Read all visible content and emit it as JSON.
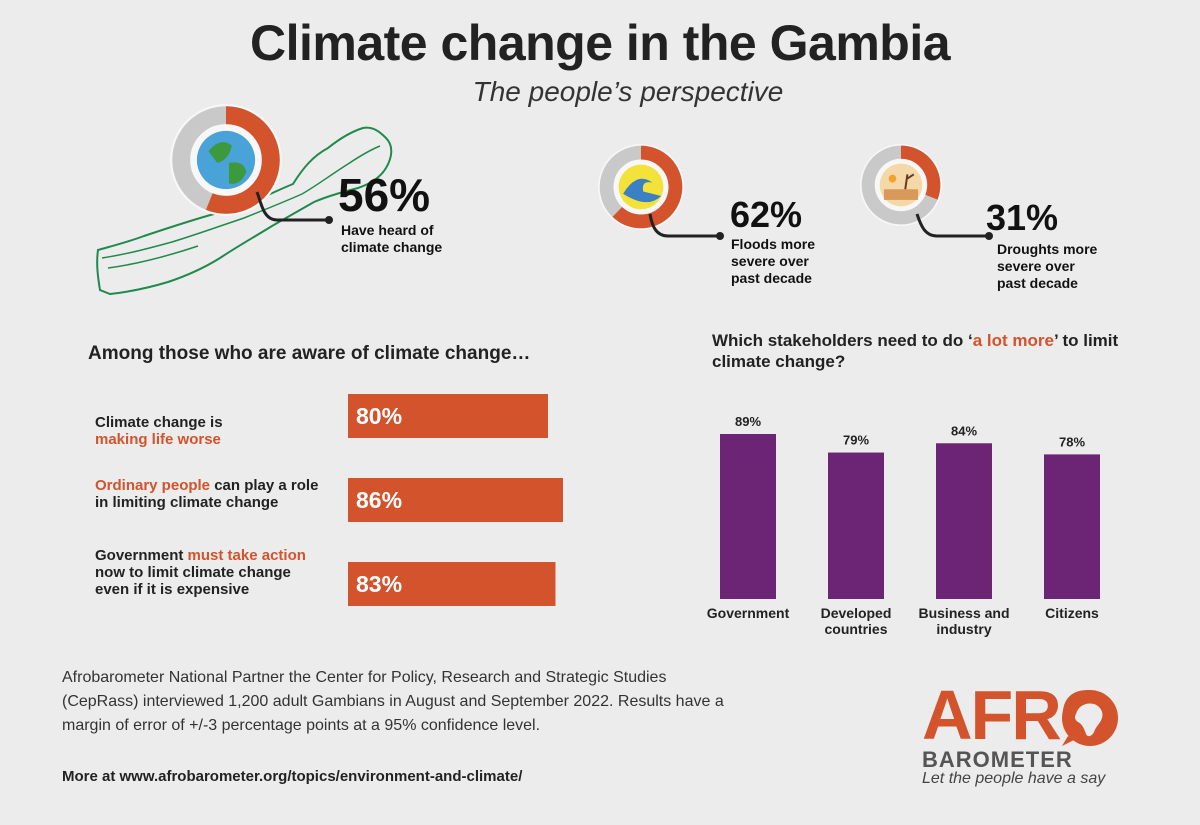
{
  "title": "Climate change in the Gambia",
  "subtitle": "The people’s perspective",
  "colors": {
    "orange": "#d2532c",
    "purple": "#6b2574",
    "grey_ring": "#c9c9c9",
    "map_green": "#1e8a4b"
  },
  "stats": {
    "heard": {
      "pct": "56%",
      "value": 56,
      "label": "Have heard of climate change"
    },
    "floods": {
      "pct": "62%",
      "value": 62,
      "label": "Floods more severe over past decade"
    },
    "droughts": {
      "pct": "31%",
      "value": 31,
      "label": "Droughts more severe over past decade"
    }
  },
  "icons": [
    "globe-icon",
    "wave-icon",
    "drought-icon",
    "gambia-map",
    "africa-icon"
  ],
  "aware": {
    "heading": "Among those who are aware of climate change…",
    "items": [
      {
        "text_plain": "Climate change is",
        "text_hl": "making life worse",
        "text_after": "",
        "pct": "80%",
        "value": 80
      },
      {
        "text_hl": "Ordinary people",
        "text_after": " can play a role in limiting climate change",
        "pct": "86%",
        "value": 86
      },
      {
        "text_plain": "Government",
        "text_hl": " must take action",
        "text_after": " now to limit climate change even if it is expensive",
        "pct": "83%",
        "value": 83
      }
    ]
  },
  "stakeholders": {
    "heading_pre": "Which stakeholders need to do ‘",
    "heading_hl": "a lot more",
    "heading_post": "’ to limit climate change?"
  },
  "chart_data": [
    {
      "type": "bar",
      "orientation": "horizontal",
      "categories": [
        "Climate change is making life worse",
        "Ordinary people can play a role in limiting climate change",
        "Government must take action now to limit climate change even if it is expensive"
      ],
      "values": [
        80,
        86,
        83
      ],
      "unit": "%"
    },
    {
      "type": "bar",
      "title": "Which stakeholders need to do ‘a lot more’ to limit climate change?",
      "categories": [
        "Government",
        "Developed countries",
        "Business and industry",
        "Citizens"
      ],
      "category_lines": [
        [
          "Government"
        ],
        [
          "Developed",
          "countries"
        ],
        [
          "Business and",
          "industry"
        ],
        [
          "Citizens"
        ]
      ],
      "values": [
        89,
        79,
        84,
        78
      ],
      "labels": [
        "89%",
        "79%",
        "84%",
        "78%"
      ],
      "unit": "%",
      "color": "#6b2574"
    }
  ],
  "footer": {
    "text": "Afrobarometer National Partner the Center for Policy, Research and Strategic Studies (CepRass) interviewed 1,200 adult Gambians in August and September 2022. Results have a margin of error of +/-3 percentage points at a 95% confidence level.",
    "more": "More at www.afrobarometer.org/topics/environment-and-climate/"
  },
  "logo": {
    "afro": "AFRO",
    "barometer": "BAROMETER",
    "tagline": "Let the people have a say"
  }
}
